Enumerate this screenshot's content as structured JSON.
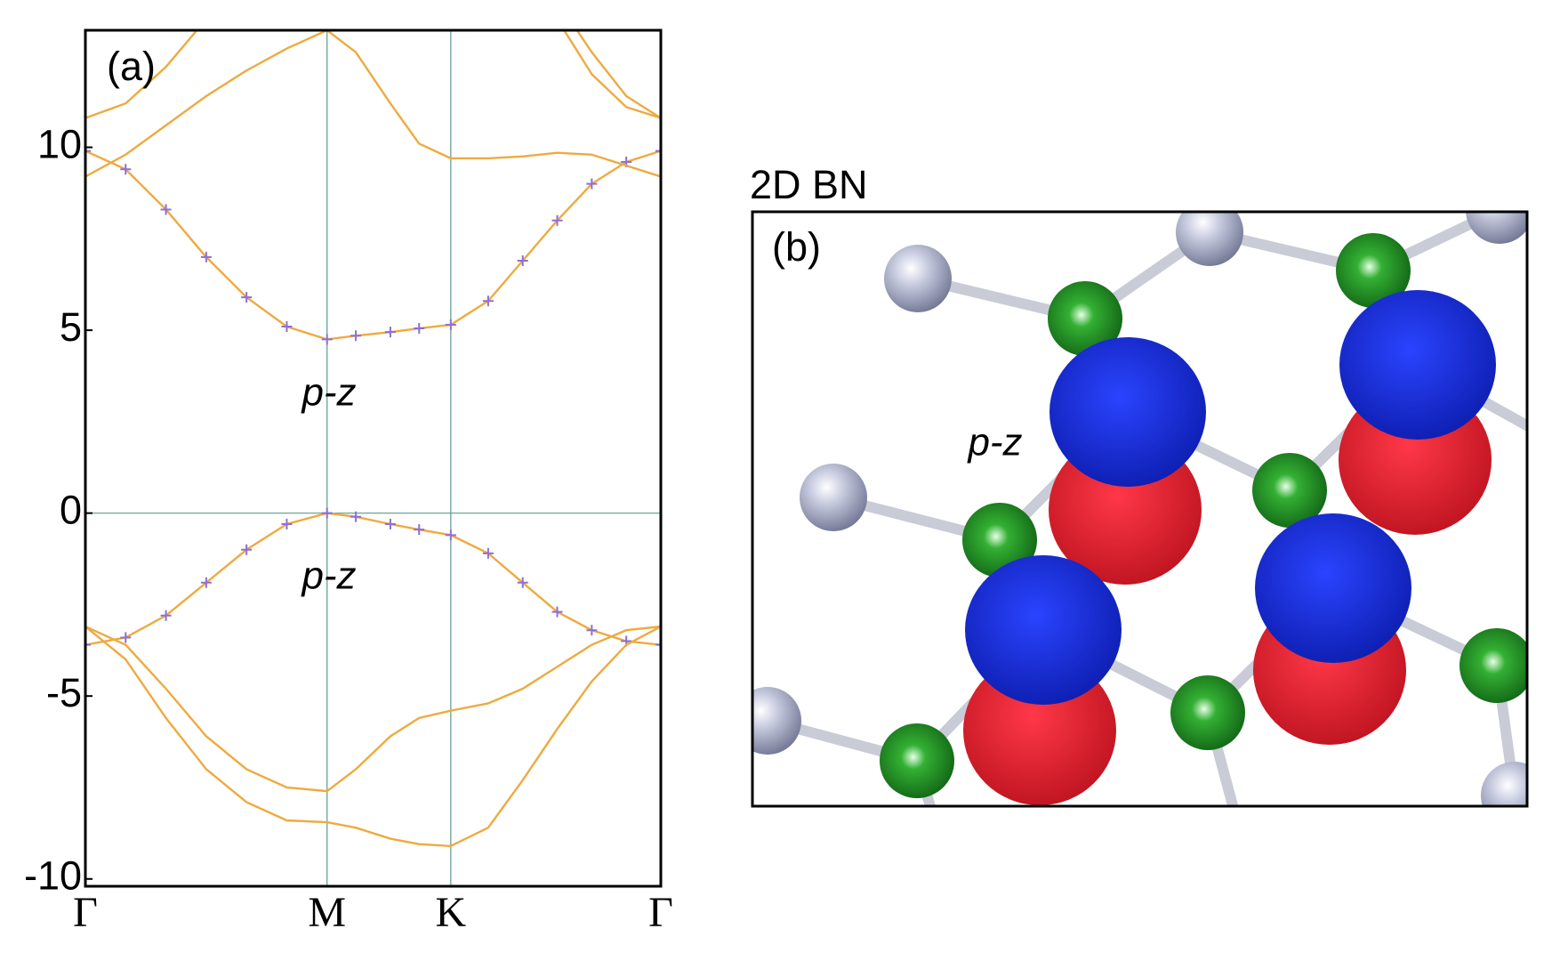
{
  "chart_data": {
    "type": "line",
    "annotations": [
      "(a)",
      "p-z",
      "p-z"
    ],
    "x": [
      0,
      0.07,
      0.14,
      0.21,
      0.28,
      0.35,
      0.42,
      0.47,
      0.53,
      0.58,
      0.635,
      0.7,
      0.76,
      0.82,
      0.88,
      0.94,
      1.0
    ],
    "xlim": [
      0,
      1
    ],
    "xticks": [
      {
        "value": 0,
        "label": "Γ"
      },
      {
        "value": 0.42,
        "label": "M"
      },
      {
        "value": 0.635,
        "label": "K"
      },
      {
        "value": 1,
        "label": "Γ"
      }
    ],
    "ylim": [
      -10.2,
      13.2
    ],
    "yticks": [
      10,
      5,
      0,
      -5,
      -10
    ],
    "grid": true,
    "zero_line": true,
    "series": [
      {
        "color": "#eeaa40",
        "markers": true,
        "marker_color": "#8c6fd6",
        "values": [
          9.9,
          9.4,
          8.3,
          7.0,
          5.9,
          5.1,
          4.75,
          4.85,
          4.95,
          5.05,
          5.15,
          5.8,
          6.9,
          8.0,
          9.0,
          9.6,
          9.9
        ]
      },
      {
        "color": "#eeaa40",
        "markers": true,
        "marker_color": "#8c6fd6",
        "values": [
          -3.6,
          -3.4,
          -2.8,
          -1.9,
          -1.0,
          -0.3,
          0,
          -0.1,
          -0.3,
          -0.45,
          -0.6,
          -1.1,
          -1.9,
          -2.7,
          -3.2,
          -3.5,
          -3.6
        ]
      },
      {
        "color": "#eeaa40",
        "values": [
          -3.1,
          -3.6,
          -4.8,
          -6.1,
          -7.0,
          -7.5,
          -7.6,
          -7.0,
          -6.1,
          -5.6,
          -5.4,
          -5.2,
          -4.8,
          -4.2,
          -3.6,
          -3.2,
          -3.1
        ]
      },
      {
        "color": "#eeaa40",
        "values": [
          -3.1,
          -4.0,
          -5.6,
          -7.0,
          -7.9,
          -8.4,
          -8.45,
          -8.6,
          -8.9,
          -9.05,
          -9.1,
          -8.6,
          -7.3,
          -5.9,
          -4.6,
          -3.6,
          -3.1
        ]
      },
      {
        "color": "#eeaa40",
        "values": [
          10.8,
          11.2,
          12.2,
          13.5,
          null,
          null,
          null,
          null,
          null,
          null,
          null,
          null,
          null,
          null,
          null,
          null,
          null
        ]
      },
      {
        "color": "#eeaa40",
        "values": [
          9.2,
          9.8,
          10.6,
          11.4,
          12.1,
          12.7,
          13.2,
          12.6,
          11.2,
          10.1,
          9.7,
          9.7,
          9.75,
          9.85,
          9.8,
          9.5,
          9.2
        ]
      },
      {
        "color": "#eeaa40",
        "values": [
          null,
          null,
          null,
          null,
          null,
          null,
          null,
          null,
          null,
          null,
          null,
          null,
          null,
          13.5,
          12.0,
          11.1,
          10.8
        ]
      },
      {
        "color": "#eeaa40",
        "values": [
          null,
          null,
          null,
          null,
          null,
          null,
          null,
          null,
          null,
          null,
          null,
          null,
          null,
          14.0,
          12.6,
          11.4,
          10.8
        ]
      }
    ]
  },
  "panel_b": {
    "title": "2D BN",
    "label": "(b)",
    "annotation": "p-z"
  }
}
